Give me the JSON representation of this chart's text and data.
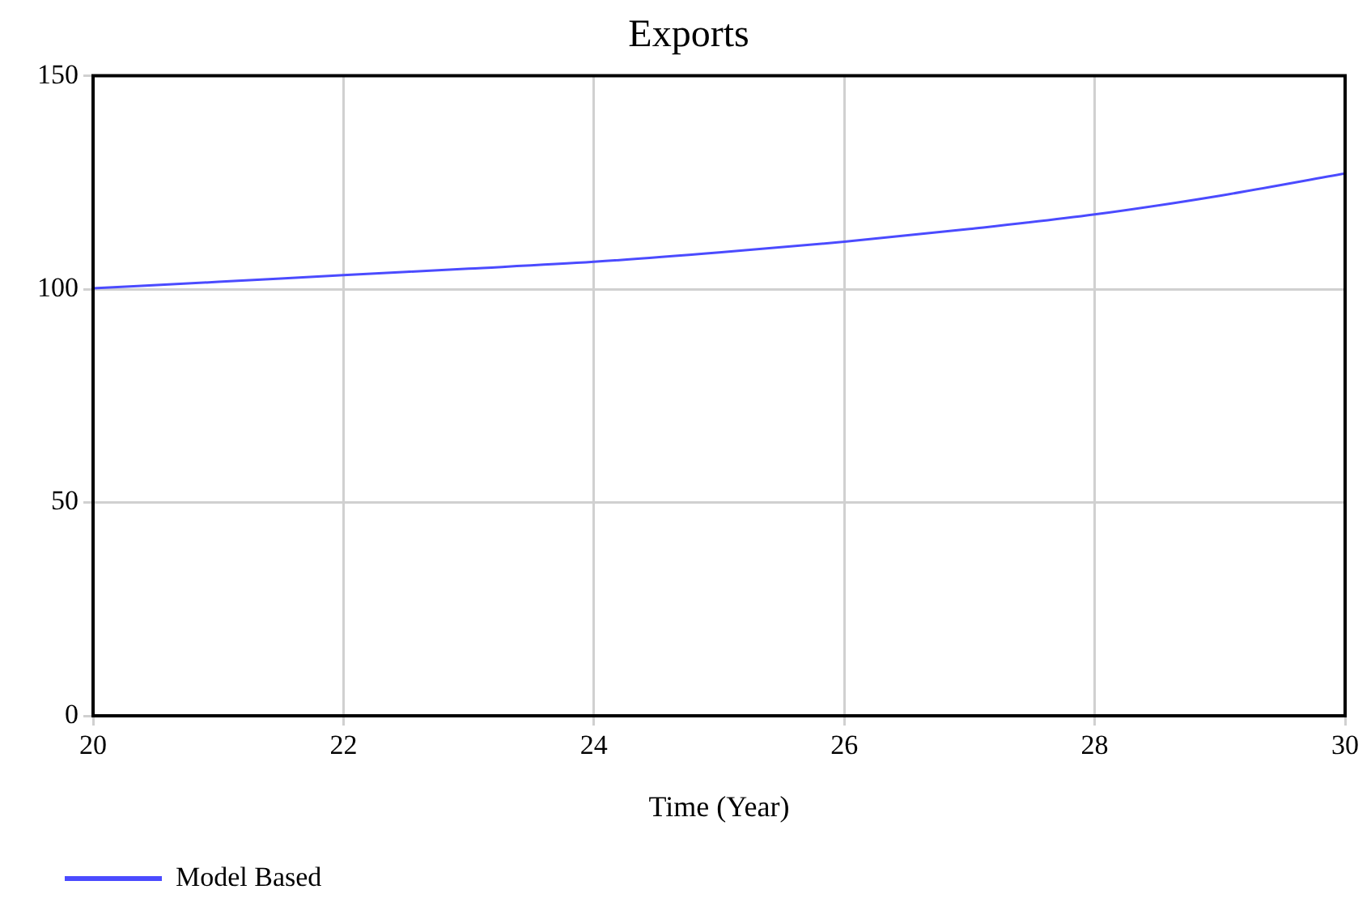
{
  "chart_data": {
    "type": "line",
    "title": "Exports",
    "xlabel": "Time (Year)",
    "x": [
      20,
      21,
      22,
      23,
      24,
      25,
      26,
      27,
      28,
      29,
      30
    ],
    "series": [
      {
        "name": "Model Based",
        "color": "#4b4bff",
        "values": [
          100.2,
          101.7,
          103.3,
          104.8,
          106.4,
          108.6,
          111.1,
          114.1,
          117.5,
          121.9,
          127.1
        ]
      }
    ],
    "xlim": [
      20,
      30
    ],
    "xticks": [
      20,
      22,
      24,
      26,
      28,
      30
    ],
    "ylim": [
      0,
      150
    ],
    "yticks": [
      0,
      50,
      100,
      150
    ],
    "grid": true,
    "legend": "bottom left",
    "marker": "none",
    "line_style": "solid"
  }
}
